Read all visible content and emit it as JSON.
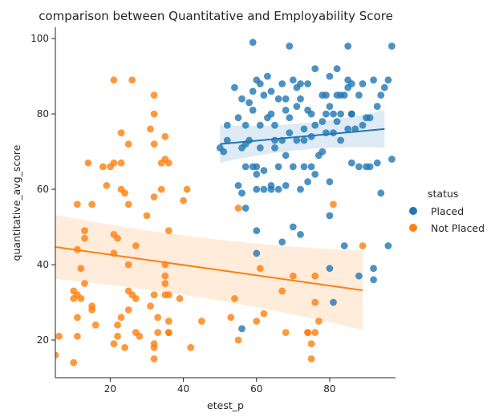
{
  "chart_data": {
    "type": "scatter",
    "title": "comparison between Quantitative and Employability Score",
    "xlabel": "etest_p",
    "ylabel": "quantitative_avg_score",
    "xlim": [
      5,
      98
    ],
    "ylim": [
      10,
      103
    ],
    "xticks": [
      20,
      40,
      60,
      80
    ],
    "yticks": [
      20,
      40,
      60,
      80,
      100
    ],
    "grid": false,
    "legend_title": "status",
    "legend_position": "right",
    "series": [
      {
        "name": "Placed",
        "color": "#1f77b4",
        "regression": {
          "x": [
            50,
            95
          ],
          "y": [
            72,
            76
          ],
          "band_halfwidth": [
            3.5,
            3.5
          ]
        },
        "points": [
          [
            50,
            71
          ],
          [
            51,
            70
          ],
          [
            52,
            77
          ],
          [
            52,
            73
          ],
          [
            54,
            87
          ],
          [
            55,
            61
          ],
          [
            55,
            79
          ],
          [
            56,
            59
          ],
          [
            56,
            71
          ],
          [
            56,
            84
          ],
          [
            57,
            55
          ],
          [
            57,
            72
          ],
          [
            57,
            77
          ],
          [
            57,
            66
          ],
          [
            58,
            83
          ],
          [
            58,
            73
          ],
          [
            59,
            99
          ],
          [
            59,
            86
          ],
          [
            59,
            66
          ],
          [
            59,
            81
          ],
          [
            60,
            89
          ],
          [
            60,
            66
          ],
          [
            60,
            64
          ],
          [
            60,
            60
          ],
          [
            60,
            49
          ],
          [
            60,
            43
          ],
          [
            61,
            88
          ],
          [
            61,
            71
          ],
          [
            61,
            77
          ],
          [
            62,
            65
          ],
          [
            62,
            85
          ],
          [
            62,
            60
          ],
          [
            63,
            90
          ],
          [
            63,
            79
          ],
          [
            64,
            86
          ],
          [
            64,
            80
          ],
          [
            64,
            61
          ],
          [
            64,
            60
          ],
          [
            65,
            71
          ],
          [
            65,
            73
          ],
          [
            65,
            77
          ],
          [
            66,
            84
          ],
          [
            66,
            66
          ],
          [
            66,
            60
          ],
          [
            67,
            88
          ],
          [
            67,
            73
          ],
          [
            67,
            46
          ],
          [
            68,
            84
          ],
          [
            68,
            81
          ],
          [
            68,
            69
          ],
          [
            68,
            61
          ],
          [
            69,
            98
          ],
          [
            69,
            79
          ],
          [
            69,
            75
          ],
          [
            70,
            89
          ],
          [
            70,
            66
          ],
          [
            70,
            50
          ],
          [
            71,
            87
          ],
          [
            71,
            82
          ],
          [
            71,
            73
          ],
          [
            72,
            88
          ],
          [
            72,
            84
          ],
          [
            72,
            60
          ],
          [
            72,
            48
          ],
          [
            73,
            76
          ],
          [
            73,
            73
          ],
          [
            73,
            66
          ],
          [
            74,
            88
          ],
          [
            74,
            81
          ],
          [
            74,
            62
          ],
          [
            75,
            80
          ],
          [
            75,
            74
          ],
          [
            75,
            66
          ],
          [
            76,
            92
          ],
          [
            76,
            77
          ],
          [
            76,
            64
          ],
          [
            77,
            69
          ],
          [
            78,
            85
          ],
          [
            78,
            78
          ],
          [
            78,
            70
          ],
          [
            79,
            85
          ],
          [
            79,
            75
          ],
          [
            79,
            80
          ],
          [
            80,
            90
          ],
          [
            80,
            82
          ],
          [
            80,
            62
          ],
          [
            80,
            53
          ],
          [
            81,
            75
          ],
          [
            81,
            80
          ],
          [
            81,
            30
          ],
          [
            82,
            92
          ],
          [
            82,
            85
          ],
          [
            82,
            78
          ],
          [
            83,
            85
          ],
          [
            83,
            73
          ],
          [
            83,
            80
          ],
          [
            84,
            45
          ],
          [
            84,
            85
          ],
          [
            85,
            87
          ],
          [
            85,
            76
          ],
          [
            85,
            98
          ],
          [
            85,
            89
          ],
          [
            86,
            88
          ],
          [
            86,
            80
          ],
          [
            86,
            67
          ],
          [
            86,
            80
          ],
          [
            87,
            76
          ],
          [
            88,
            85
          ],
          [
            88,
            66
          ],
          [
            88,
            37
          ],
          [
            89,
            88
          ],
          [
            89,
            77
          ],
          [
            90,
            79
          ],
          [
            90,
            66
          ],
          [
            91,
            66
          ],
          [
            91,
            79
          ],
          [
            92,
            89
          ],
          [
            92,
            36
          ],
          [
            92,
            39
          ],
          [
            93,
            82
          ],
          [
            93,
            67
          ],
          [
            94,
            85
          ],
          [
            94,
            59
          ],
          [
            95,
            87
          ],
          [
            96,
            89
          ],
          [
            96,
            45
          ],
          [
            97,
            98
          ],
          [
            97,
            68
          ],
          [
            80,
            39
          ],
          [
            56,
            23
          ]
        ]
      },
      {
        "name": "Not Placed",
        "color": "#ff7f0e",
        "regression": {
          "x": [
            5,
            89
          ],
          "y": [
            44.7,
            33.2
          ],
          "band_halfwidth": [
            7,
            9
          ]
        },
        "points": [
          [
            5,
            16
          ],
          [
            6,
            21
          ],
          [
            10,
            14
          ],
          [
            10,
            33
          ],
          [
            10,
            31
          ],
          [
            11,
            56
          ],
          [
            11,
            32
          ],
          [
            11,
            26
          ],
          [
            11,
            21
          ],
          [
            11,
            44
          ],
          [
            12,
            31
          ],
          [
            12,
            39
          ],
          [
            13,
            35
          ],
          [
            13,
            49
          ],
          [
            13,
            47
          ],
          [
            14,
            67
          ],
          [
            15,
            56
          ],
          [
            15,
            29
          ],
          [
            15,
            28
          ],
          [
            16,
            24
          ],
          [
            18,
            66
          ],
          [
            19,
            61
          ],
          [
            20,
            66
          ],
          [
            21,
            89
          ],
          [
            21,
            67
          ],
          [
            21,
            48
          ],
          [
            21,
            43
          ],
          [
            21,
            19
          ],
          [
            22,
            47
          ],
          [
            22,
            24
          ],
          [
            22,
            21
          ],
          [
            23,
            67
          ],
          [
            23,
            75
          ],
          [
            23,
            60
          ],
          [
            23,
            26
          ],
          [
            24,
            59
          ],
          [
            24,
            18
          ],
          [
            25,
            72
          ],
          [
            25,
            56
          ],
          [
            25,
            40
          ],
          [
            25,
            33
          ],
          [
            25,
            28
          ],
          [
            26,
            89
          ],
          [
            26,
            32
          ],
          [
            27,
            31
          ],
          [
            27,
            45
          ],
          [
            27,
            22
          ],
          [
            28,
            21
          ],
          [
            30,
            53
          ],
          [
            31,
            76
          ],
          [
            31,
            29
          ],
          [
            32,
            85
          ],
          [
            32,
            80
          ],
          [
            32,
            72
          ],
          [
            32,
            58
          ],
          [
            32,
            32
          ],
          [
            32,
            19
          ],
          [
            32,
            18
          ],
          [
            32,
            15
          ],
          [
            33,
            22
          ],
          [
            33,
            26
          ],
          [
            34,
            67
          ],
          [
            34,
            60
          ],
          [
            35,
            37
          ],
          [
            35,
            35
          ],
          [
            35,
            40
          ],
          [
            35,
            32
          ],
          [
            35,
            74
          ],
          [
            35,
            68
          ],
          [
            36,
            67
          ],
          [
            36,
            49
          ],
          [
            36,
            25
          ],
          [
            36,
            22
          ],
          [
            36,
            22
          ],
          [
            36,
            32
          ],
          [
            39,
            31
          ],
          [
            40,
            57
          ],
          [
            41,
            60
          ],
          [
            42,
            18
          ],
          [
            45,
            25
          ],
          [
            53,
            26
          ],
          [
            54,
            31
          ],
          [
            55,
            55
          ],
          [
            55,
            20
          ],
          [
            60,
            25
          ],
          [
            61,
            39
          ],
          [
            62,
            27
          ],
          [
            67,
            33
          ],
          [
            68,
            22
          ],
          [
            70,
            37
          ],
          [
            74,
            22
          ],
          [
            74,
            22
          ],
          [
            75,
            15
          ],
          [
            75,
            19
          ],
          [
            76,
            30
          ],
          [
            76,
            37
          ],
          [
            76,
            22
          ],
          [
            77,
            25
          ],
          [
            81,
            56
          ],
          [
            89,
            45
          ]
        ]
      }
    ]
  }
}
